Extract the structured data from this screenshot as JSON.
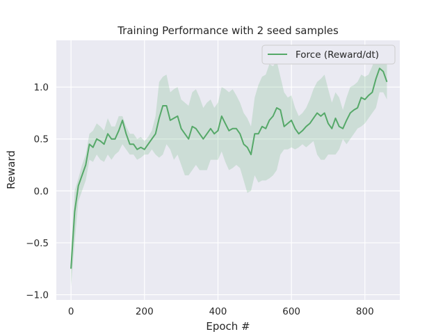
{
  "chart_data": {
    "type": "line",
    "title": "Training Performance with 2 seed samples",
    "xlabel": "Epoch #",
    "ylabel": "Reward",
    "xlim": [
      -40,
      895
    ],
    "ylim": [
      -1.05,
      1.45
    ],
    "xticks": [
      0,
      200,
      400,
      600,
      800
    ],
    "yticks": [
      -1.0,
      -0.5,
      0.0,
      0.5,
      1.0
    ],
    "ytick_labels": [
      "−1.0",
      "−0.5",
      "0.0",
      "0.5",
      "1.0"
    ],
    "grid": true,
    "legend_position": "top-right",
    "colors": {
      "background": "#eaeaf2",
      "grid": "#ffffff",
      "line": "#55a868",
      "band": "#55a868"
    },
    "series": [
      {
        "name": "Force (Reward/dt)",
        "x": [
          0,
          10,
          20,
          30,
          40,
          50,
          60,
          70,
          80,
          90,
          100,
          110,
          120,
          130,
          140,
          150,
          160,
          170,
          180,
          190,
          200,
          210,
          220,
          230,
          240,
          250,
          260,
          270,
          280,
          290,
          300,
          310,
          320,
          330,
          340,
          350,
          360,
          370,
          380,
          390,
          400,
          410,
          420,
          430,
          440,
          450,
          460,
          470,
          480,
          490,
          500,
          510,
          520,
          530,
          540,
          550,
          560,
          570,
          580,
          590,
          600,
          610,
          620,
          630,
          640,
          650,
          660,
          670,
          680,
          690,
          700,
          710,
          720,
          730,
          740,
          750,
          760,
          770,
          780,
          790,
          800,
          810,
          820,
          830,
          840,
          850,
          860
        ],
        "y": [
          -0.75,
          -0.2,
          0.05,
          0.15,
          0.25,
          0.45,
          0.42,
          0.5,
          0.48,
          0.45,
          0.55,
          0.5,
          0.5,
          0.58,
          0.68,
          0.55,
          0.45,
          0.45,
          0.4,
          0.42,
          0.4,
          0.45,
          0.5,
          0.55,
          0.7,
          0.82,
          0.82,
          0.68,
          0.7,
          0.72,
          0.6,
          0.55,
          0.5,
          0.62,
          0.6,
          0.55,
          0.5,
          0.55,
          0.6,
          0.55,
          0.58,
          0.72,
          0.65,
          0.58,
          0.6,
          0.6,
          0.55,
          0.45,
          0.42,
          0.35,
          0.55,
          0.55,
          0.62,
          0.6,
          0.68,
          0.72,
          0.8,
          0.78,
          0.62,
          0.65,
          0.68,
          0.6,
          0.55,
          0.58,
          0.62,
          0.65,
          0.7,
          0.75,
          0.72,
          0.75,
          0.65,
          0.6,
          0.7,
          0.62,
          0.6,
          0.68,
          0.75,
          0.78,
          0.8,
          0.9,
          0.88,
          0.92,
          0.95,
          1.08,
          1.18,
          1.15,
          1.05
        ],
        "y_lower": [
          -0.92,
          -0.5,
          -0.1,
          0.0,
          0.1,
          0.3,
          0.28,
          0.35,
          0.3,
          0.28,
          0.35,
          0.3,
          0.35,
          0.38,
          0.45,
          0.4,
          0.35,
          0.35,
          0.3,
          0.32,
          0.35,
          0.35,
          0.4,
          0.35,
          0.32,
          0.35,
          0.45,
          0.4,
          0.3,
          0.35,
          0.25,
          0.15,
          0.15,
          0.2,
          0.25,
          0.2,
          0.2,
          0.2,
          0.3,
          0.3,
          0.3,
          0.38,
          0.28,
          0.2,
          0.22,
          0.25,
          0.22,
          0.1,
          -0.02,
          0.0,
          0.15,
          0.08,
          0.1,
          0.1,
          0.12,
          0.15,
          0.2,
          0.35,
          0.4,
          0.4,
          0.42,
          0.4,
          0.42,
          0.45,
          0.42,
          0.45,
          0.48,
          0.35,
          0.3,
          0.3,
          0.35,
          0.35,
          0.35,
          0.4,
          0.5,
          0.45,
          0.5,
          0.55,
          0.6,
          0.62,
          0.65,
          0.7,
          0.75,
          0.8,
          0.95,
          0.95,
          0.88
        ],
        "y_upper": [
          -0.6,
          0.0,
          0.12,
          0.25,
          0.35,
          0.55,
          0.58,
          0.65,
          0.62,
          0.58,
          0.7,
          0.62,
          0.62,
          0.72,
          0.72,
          0.62,
          0.55,
          0.55,
          0.5,
          0.52,
          0.48,
          0.52,
          0.58,
          0.72,
          1.05,
          1.1,
          1.12,
          0.95,
          0.98,
          1.0,
          0.88,
          0.85,
          0.82,
          0.95,
          0.98,
          0.9,
          0.8,
          0.85,
          0.88,
          0.8,
          0.85,
          1.0,
          0.98,
          0.95,
          0.98,
          0.92,
          0.85,
          0.75,
          0.7,
          0.62,
          0.9,
          1.02,
          1.1,
          1.12,
          1.22,
          1.2,
          1.25,
          1.1,
          0.95,
          0.9,
          0.92,
          0.8,
          0.72,
          0.75,
          0.8,
          0.88,
          0.98,
          1.05,
          1.08,
          1.12,
          0.98,
          0.85,
          0.95,
          0.9,
          0.78,
          0.9,
          1.0,
          1.02,
          1.05,
          1.12,
          1.1,
          1.12,
          1.2,
          1.3,
          1.3,
          1.32,
          1.22
        ]
      }
    ]
  }
}
